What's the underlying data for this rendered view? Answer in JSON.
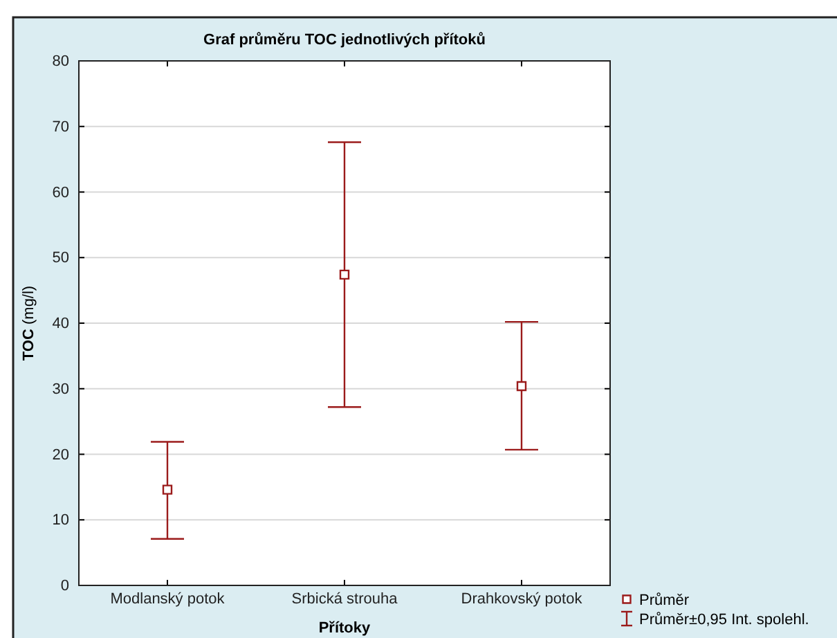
{
  "chart_data": {
    "type": "scatter",
    "title": "Graf průměru TOC jednotlivých přítoků",
    "xlabel": "Přítoky",
    "ylabel": "TOC (mg/l)",
    "categories": [
      "Modlanský potok",
      "Srbická strouha",
      "Drahkovský potok"
    ],
    "series": [
      {
        "name": "Průměr",
        "color": "#9b1b1b",
        "values": [
          14.6,
          47.4,
          30.4
        ],
        "errors": [
          [
            7.1,
            21.9
          ],
          [
            27.2,
            67.6
          ],
          [
            20.7,
            40.2
          ]
        ]
      }
    ],
    "annotations": [
      "Průměr±0,95 Int. spolehl."
    ],
    "ylim": [
      0,
      80
    ],
    "yticks": [
      0,
      10,
      20,
      30,
      40,
      50,
      60,
      70,
      80
    ],
    "grid": "y",
    "legend": "bottom right",
    "marker": "square"
  }
}
